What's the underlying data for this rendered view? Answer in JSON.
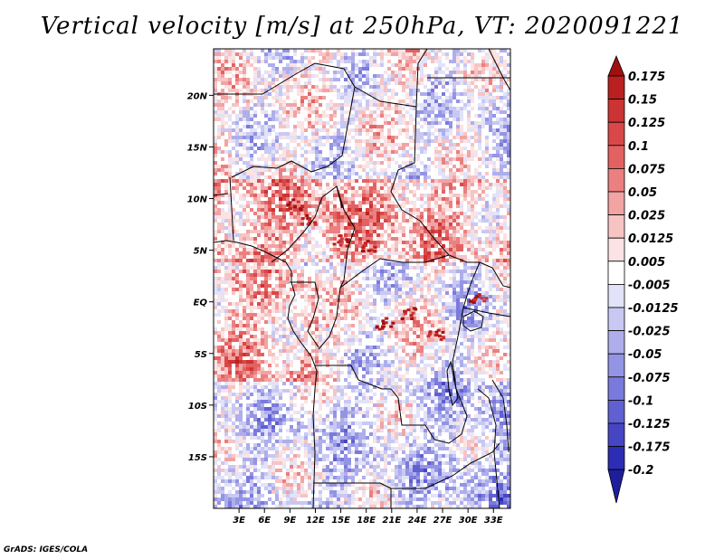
{
  "title": "Vertical velocity [m/s] at 250hPa, VT: 2020091221",
  "credit": "GrADS: IGES/COLA",
  "map": {
    "lon_range": [
      0,
      35
    ],
    "lat_range": [
      -20,
      24.5
    ],
    "lat_ticks": [
      {
        "value": 20,
        "label": "20N"
      },
      {
        "value": 15,
        "label": "15N"
      },
      {
        "value": 10,
        "label": "10N"
      },
      {
        "value": 5,
        "label": "5N"
      },
      {
        "value": 0,
        "label": "EQ"
      },
      {
        "value": -5,
        "label": "5S"
      },
      {
        "value": -10,
        "label": "10S"
      },
      {
        "value": -15,
        "label": "15S"
      }
    ],
    "lon_ticks": [
      {
        "value": 3,
        "label": "3E"
      },
      {
        "value": 6,
        "label": "6E"
      },
      {
        "value": 9,
        "label": "9E"
      },
      {
        "value": 12,
        "label": "12E"
      },
      {
        "value": 15,
        "label": "15E"
      },
      {
        "value": 18,
        "label": "18E"
      },
      {
        "value": 21,
        "label": "21E"
      },
      {
        "value": 24,
        "label": "24E"
      },
      {
        "value": 27,
        "label": "27E"
      },
      {
        "value": 30,
        "label": "30E"
      },
      {
        "value": 33,
        "label": "33E"
      }
    ]
  },
  "colorbar": {
    "labels": [
      "0.175",
      "0.15",
      "0.125",
      "0.1",
      "0.075",
      "0.05",
      "0.025",
      "0.0125",
      "0.005",
      "-0.005",
      "-0.0125",
      "-0.025",
      "-0.05",
      "-0.075",
      "-0.1",
      "-0.125",
      "-0.175",
      "-0.2"
    ],
    "colors": [
      "#a01010",
      "#bb2020",
      "#cc3333",
      "#d94848",
      "#e26262",
      "#ea8080",
      "#f2a3a3",
      "#f7c4c4",
      "#fbe3e3",
      "#ffffff",
      "#e2e2f8",
      "#c8c8f2",
      "#aeaeec",
      "#9494e4",
      "#7a7adc",
      "#6060d2",
      "#4646c4",
      "#2c2cb4",
      "#1e1e9c"
    ]
  }
}
